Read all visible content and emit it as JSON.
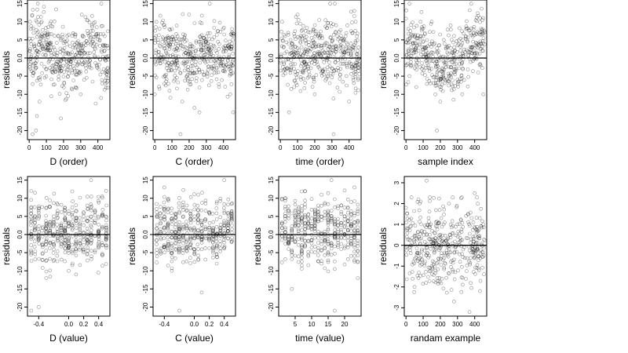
{
  "chart_data": [
    {
      "type": "scatter",
      "xlabel": "D (order)",
      "ylabel": "residuals",
      "xlim": [
        -10,
        470
      ],
      "ylim": [
        -22.5,
        16
      ],
      "xticks": [
        0,
        100,
        200,
        300,
        400
      ],
      "xtick_labels": [
        "0",
        "100",
        "200",
        "300",
        "400"
      ],
      "yticks": [
        -20,
        -15,
        -10,
        -5,
        0,
        5,
        10,
        15
      ],
      "ytick_labels": [
        "-20",
        "-15",
        "-10",
        "-5",
        "0.0",
        "5",
        "10",
        "15"
      ],
      "reference_line_y": 0,
      "points_note": "about 460 residual points, y roughly -21 to 15; samples below",
      "points": [
        [
          5,
          10
        ],
        [
          10,
          8
        ],
        [
          20,
          -21
        ],
        [
          40,
          -20
        ],
        [
          45,
          -16
        ],
        [
          50,
          1
        ],
        [
          60,
          -12
        ],
        [
          80,
          3
        ],
        [
          100,
          5
        ],
        [
          120,
          2
        ],
        [
          150,
          -3
        ],
        [
          170,
          6
        ],
        [
          200,
          2
        ],
        [
          220,
          -1
        ],
        [
          250,
          -4
        ],
        [
          270,
          -8
        ],
        [
          300,
          -10
        ],
        [
          320,
          -6
        ],
        [
          350,
          -2
        ],
        [
          380,
          4
        ],
        [
          400,
          6
        ],
        [
          420,
          15
        ],
        [
          440,
          2
        ],
        [
          455,
          -3
        ]
      ]
    },
    {
      "type": "scatter",
      "xlabel": "C (order)",
      "ylabel": "residuals",
      "xlim": [
        -10,
        470
      ],
      "ylim": [
        -22.5,
        16
      ],
      "xticks": [
        0,
        100,
        200,
        300,
        400
      ],
      "xtick_labels": [
        "0",
        "100",
        "200",
        "300",
        "400"
      ],
      "yticks": [
        -20,
        -15,
        -10,
        -5,
        0,
        5,
        10,
        15
      ],
      "ytick_labels": [
        "-20",
        "-15",
        "-10",
        "-5",
        "0.0",
        "5",
        "10",
        "15"
      ],
      "reference_line_y": 0,
      "points_note": "about 460 residual points, y roughly -21 to 15; samples below",
      "points": [
        [
          0,
          -10
        ],
        [
          20,
          5
        ],
        [
          60,
          -5
        ],
        [
          100,
          8
        ],
        [
          140,
          -3
        ],
        [
          150,
          -21
        ],
        [
          160,
          -12
        ],
        [
          200,
          12
        ],
        [
          240,
          2
        ],
        [
          260,
          -15
        ],
        [
          300,
          6
        ],
        [
          320,
          15
        ],
        [
          360,
          -4
        ],
        [
          400,
          3
        ],
        [
          440,
          -10
        ],
        [
          455,
          5
        ]
      ]
    },
    {
      "type": "scatter",
      "xlabel": "time (order)",
      "ylabel": "residuals",
      "xlim": [
        -10,
        470
      ],
      "ylim": [
        -22.5,
        16
      ],
      "xticks": [
        0,
        100,
        200,
        300,
        400
      ],
      "xtick_labels": [
        "0",
        "100",
        "200",
        "300",
        "400"
      ],
      "yticks": [
        -20,
        -15,
        -10,
        -5,
        0,
        5,
        10,
        15
      ],
      "ytick_labels": [
        "-20",
        "-15",
        "-10",
        "-5",
        "0.0",
        "5",
        "10",
        "15"
      ],
      "reference_line_y": 0,
      "points_note": "about 460 residual points, y roughly -21 to 15; samples below",
      "points": [
        [
          10,
          10
        ],
        [
          50,
          -15
        ],
        [
          80,
          -8
        ],
        [
          100,
          12
        ],
        [
          150,
          4
        ],
        [
          200,
          -10
        ],
        [
          240,
          6
        ],
        [
          290,
          15
        ],
        [
          310,
          -21
        ],
        [
          350,
          -3
        ],
        [
          400,
          -12
        ],
        [
          430,
          13
        ],
        [
          450,
          2
        ]
      ]
    },
    {
      "type": "scatter",
      "xlabel": "sample index",
      "ylabel": "residuals",
      "xlim": [
        -10,
        470
      ],
      "ylim": [
        -22.5,
        16
      ],
      "xticks": [
        0,
        100,
        200,
        300,
        400
      ],
      "xtick_labels": [
        "0",
        "100",
        "200",
        "300",
        "400"
      ],
      "yticks": [
        -20,
        -15,
        -10,
        -5,
        0,
        5,
        10,
        15
      ],
      "ytick_labels": [
        "-20",
        "-15",
        "-10",
        "-5",
        "0.0",
        "5",
        "10",
        "15"
      ],
      "reference_line_y": 0,
      "points_note": "about 460 residual points, y roughly -21 to 15; samples below",
      "points": [
        [
          0,
          -2
        ],
        [
          30,
          3
        ],
        [
          60,
          -8
        ],
        [
          100,
          6
        ],
        [
          150,
          10
        ],
        [
          180,
          -20
        ],
        [
          200,
          -12
        ],
        [
          220,
          5
        ],
        [
          260,
          9
        ],
        [
          300,
          -6
        ],
        [
          350,
          8
        ],
        [
          380,
          15
        ],
        [
          420,
          -4
        ],
        [
          450,
          -10
        ]
      ]
    },
    {
      "type": "scatter",
      "xlabel": "D (value)",
      "ylabel": "residuals",
      "xlim": [
        -0.55,
        0.55
      ],
      "ylim": [
        -22.5,
        16
      ],
      "xticks": [
        -0.4,
        0,
        0.2,
        0.4
      ],
      "xtick_labels": [
        "-0.4",
        "0.0",
        "0.2",
        "0.4"
      ],
      "yticks": [
        -20,
        -15,
        -10,
        -5,
        0,
        5,
        10,
        15
      ],
      "ytick_labels": [
        "-20",
        "-15",
        "-10",
        "-5",
        "0.0",
        "5",
        "10",
        "15"
      ],
      "reference_line_y": 0,
      "points_note": "about 460 residual points at discrete D values, y roughly -21 to 15; samples below",
      "points": [
        [
          -0.5,
          12
        ],
        [
          -0.5,
          -21
        ],
        [
          -0.4,
          -20
        ],
        [
          -0.3,
          -12
        ],
        [
          -0.2,
          5
        ],
        [
          -0.1,
          3
        ],
        [
          0,
          -10
        ],
        [
          0.05,
          -8
        ],
        [
          0.1,
          -2
        ],
        [
          0.2,
          4
        ],
        [
          0.3,
          15
        ],
        [
          0.4,
          1
        ],
        [
          0.5,
          -3
        ]
      ]
    },
    {
      "type": "scatter",
      "xlabel": "C (value)",
      "ylabel": "residuals",
      "xlim": [
        -0.55,
        0.55
      ],
      "ylim": [
        -22.5,
        16
      ],
      "xticks": [
        -0.4,
        0,
        0.2,
        0.4
      ],
      "xtick_labels": [
        "-0.4",
        "0.0",
        "0.2",
        "0.4"
      ],
      "yticks": [
        -20,
        -15,
        -10,
        -5,
        0,
        5,
        10,
        15
      ],
      "ytick_labels": [
        "-20",
        "-15",
        "-10",
        "-5",
        "0.0",
        "5",
        "10",
        "15"
      ],
      "reference_line_y": 0,
      "points_note": "about 460 residual points at discrete C values, y roughly -21 to 15; samples below",
      "points": [
        [
          -0.5,
          5
        ],
        [
          -0.4,
          13
        ],
        [
          -0.3,
          -10
        ],
        [
          -0.2,
          -21
        ],
        [
          -0.1,
          8
        ],
        [
          0,
          -4
        ],
        [
          0.1,
          -16
        ],
        [
          0.2,
          6
        ],
        [
          0.3,
          -8
        ],
        [
          0.4,
          15
        ],
        [
          0.45,
          3
        ],
        [
          0.5,
          -2
        ]
      ]
    },
    {
      "type": "scatter",
      "xlabel": "time (value)",
      "ylabel": "residuals",
      "xlim": [
        0,
        25
      ],
      "ylim": [
        -22.5,
        16
      ],
      "xticks": [
        5,
        10,
        15,
        20
      ],
      "xtick_labels": [
        "5",
        "10",
        "15",
        "20"
      ],
      "yticks": [
        -20,
        -15,
        -10,
        -5,
        0,
        5,
        10,
        15
      ],
      "ytick_labels": [
        "-20",
        "-15",
        "-10",
        "-5",
        "0.0",
        "5",
        "10",
        "15"
      ],
      "reference_line_y": 0,
      "points_note": "about 460 residual points at integer time values 1-24, y roughly -21 to 15; samples below",
      "points": [
        [
          2,
          10
        ],
        [
          4,
          -15
        ],
        [
          6,
          -6
        ],
        [
          8,
          12
        ],
        [
          10,
          3
        ],
        [
          12,
          8
        ],
        [
          13,
          -8
        ],
        [
          16,
          15
        ],
        [
          17,
          -21
        ],
        [
          19,
          -4
        ],
        [
          21,
          6
        ],
        [
          23,
          13
        ],
        [
          24,
          -12
        ]
      ]
    },
    {
      "type": "scatter",
      "xlabel": "randam example",
      "ylabel": "residuals",
      "xlim": [
        -10,
        470
      ],
      "ylim": [
        -3.4,
        3.3
      ],
      "xticks": [
        0,
        100,
        200,
        300,
        400
      ],
      "xtick_labels": [
        "0",
        "100",
        "200",
        "300",
        "400"
      ],
      "yticks": [
        -3,
        -2,
        -1,
        0,
        1,
        2,
        3
      ],
      "ytick_labels": [
        "-3",
        "-2",
        "-1",
        "0",
        "1",
        "2",
        "3"
      ],
      "reference_line_y": 0,
      "points_note": "about 460 random normal points, y roughly -3 to 3; samples below",
      "points": [
        [
          0,
          1.8
        ],
        [
          50,
          -2
        ],
        [
          80,
          2
        ],
        [
          120,
          3.1
        ],
        [
          150,
          -1
        ],
        [
          200,
          0.5
        ],
        [
          250,
          2
        ],
        [
          280,
          -2.7
        ],
        [
          320,
          1.2
        ],
        [
          370,
          -3.2
        ],
        [
          400,
          2.5
        ],
        [
          430,
          -2.2
        ],
        [
          450,
          1
        ]
      ]
    }
  ]
}
